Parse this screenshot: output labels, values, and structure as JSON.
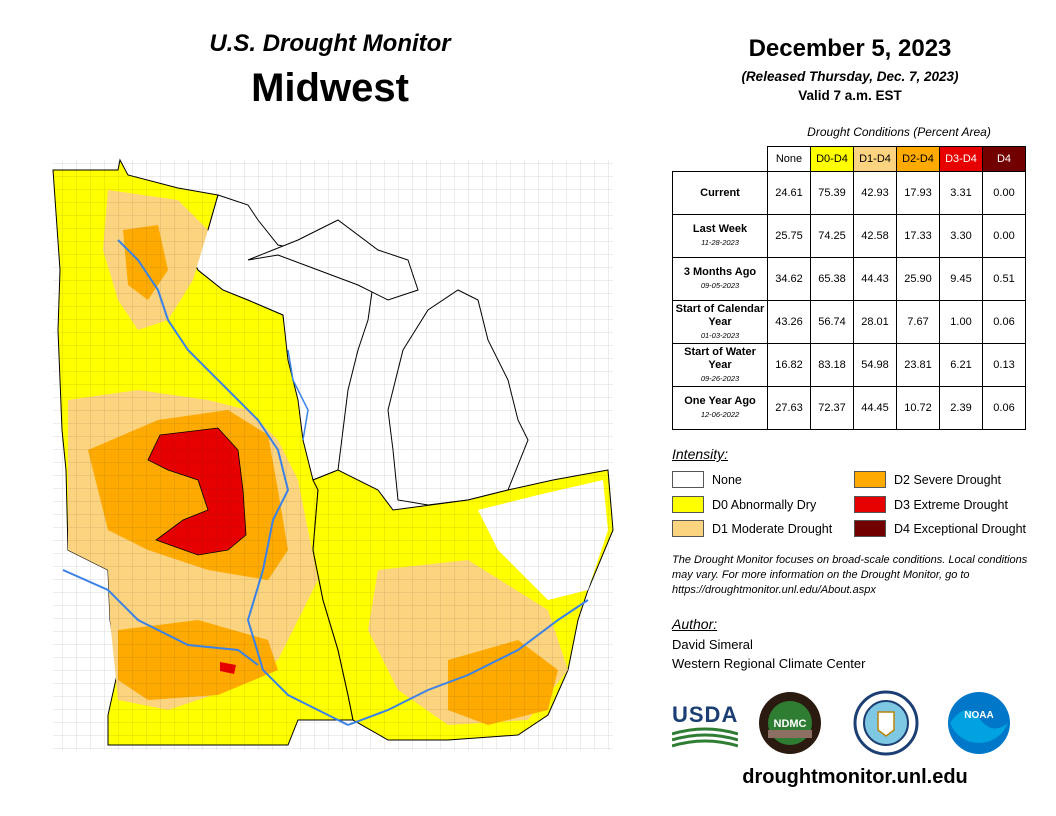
{
  "header": {
    "title": "U.S. Drought Monitor",
    "region": "Midwest",
    "date": "December 5, 2023",
    "released": "(Released Thursday, Dec. 7, 2023)",
    "valid": "Valid 7 a.m. EST"
  },
  "table": {
    "caption": "Drought Conditions (Percent Area)",
    "columns": [
      "None",
      "D0-D4",
      "D1-D4",
      "D2-D4",
      "D3-D4",
      "D4"
    ],
    "rows": [
      {
        "label": "Current",
        "sub": "",
        "values": [
          "24.61",
          "75.39",
          "42.93",
          "17.93",
          "3.31",
          "0.00"
        ]
      },
      {
        "label": "Last Week",
        "sub": "11-28-2023",
        "values": [
          "25.75",
          "74.25",
          "42.58",
          "17.33",
          "3.30",
          "0.00"
        ]
      },
      {
        "label": "3 Months Ago",
        "sub": "09-05-2023",
        "values": [
          "34.62",
          "65.38",
          "44.43",
          "25.90",
          "9.45",
          "0.51"
        ]
      },
      {
        "label": "Start of Calendar Year",
        "sub": "01-03-2023",
        "values": [
          "43.26",
          "56.74",
          "28.01",
          "7.67",
          "1.00",
          "0.06"
        ]
      },
      {
        "label": "Start of Water Year",
        "sub": "09-26-2023",
        "values": [
          "16.82",
          "83.18",
          "54.98",
          "23.81",
          "6.21",
          "0.13"
        ]
      },
      {
        "label": "One Year Ago",
        "sub": "12-06-2022",
        "values": [
          "27.63",
          "72.37",
          "44.45",
          "10.72",
          "2.39",
          "0.06"
        ]
      }
    ]
  },
  "legend": {
    "title": "Intensity:",
    "items": [
      {
        "label": "None",
        "color": "#ffffff"
      },
      {
        "label": "D0 Abnormally Dry",
        "color": "#ffff00"
      },
      {
        "label": "D1 Moderate Drought",
        "color": "#fcd37f"
      },
      {
        "label": "D2 Severe Drought",
        "color": "#ffaa00"
      },
      {
        "label": "D3 Extreme Drought",
        "color": "#e60000"
      },
      {
        "label": "D4 Exceptional Drought",
        "color": "#730000"
      }
    ]
  },
  "disclaimer": "The Drought Monitor focuses on broad-scale conditions. Local conditions may vary. For more information on the Drought Monitor, go to https://droughtmonitor.unl.edu/About.aspx",
  "author": {
    "label": "Author:",
    "name": "David Simeral",
    "org": "Western Regional Climate Center"
  },
  "logos": {
    "usda": "USDA",
    "ndmc": "NDMC",
    "noaa": "NOAA"
  },
  "url": "droughtmonitor.unl.edu"
}
